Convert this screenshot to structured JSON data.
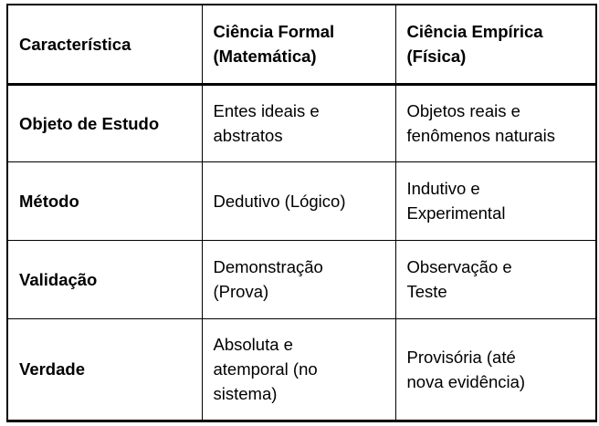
{
  "table": {
    "columns": [
      {
        "id": "caracteristica",
        "label": "Característica"
      },
      {
        "id": "ciencia-formal",
        "label": "Ciência Formal\n(Matemática)"
      },
      {
        "id": "ciencia-empirica",
        "label": "Ciência Empírica\n(Física)"
      }
    ],
    "rows": [
      {
        "cells": [
          "Objeto de Estudo",
          "Entes ideais e\nabstratos",
          "Objetos reais e\nfenômenos naturais"
        ]
      },
      {
        "cells": [
          "Método",
          "Dedutivo (Lógico)",
          "Indutivo e\nExperimental"
        ]
      },
      {
        "cells": [
          "Validação",
          "Demonstração\n(Prova)",
          "Observação e\nTeste"
        ]
      },
      {
        "cells": [
          "Verdade",
          "Absoluta e\natemporal (no\nsistema)",
          "Provisória (até\nnova evidência)"
        ]
      }
    ],
    "colors": {
      "border": "#000000",
      "text": "#000000",
      "background": "#ffffff"
    }
  }
}
